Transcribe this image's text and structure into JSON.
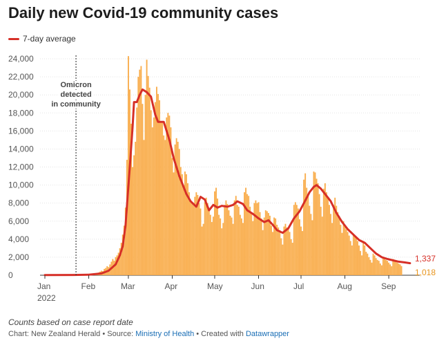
{
  "chart_data": {
    "type": "bar",
    "title": "Daily new Covid-19 community cases",
    "legend": {
      "label": "7-day average",
      "position": "top-left"
    },
    "colors": {
      "bars": "#f9ad4c",
      "line": "#d62f27",
      "last_avg": "#d62f27",
      "last_bar": "#e8951d"
    },
    "yticks": [
      0,
      2000,
      4000,
      6000,
      8000,
      10000,
      12000,
      14000,
      16000,
      18000,
      20000,
      22000,
      24000
    ],
    "ytick_labels": [
      "0",
      "2,000",
      "4,000",
      "6,000",
      "8,000",
      "10,000",
      "12,000",
      "14,000",
      "16,000",
      "18,000",
      "20,000",
      "22,000",
      "24,000"
    ],
    "ylim": [
      0,
      25000
    ],
    "xlim_days": [
      0,
      261
    ],
    "xticks": [
      {
        "day": 0,
        "label": "Jan",
        "sublabel": "2022"
      },
      {
        "day": 31,
        "label": "Feb"
      },
      {
        "day": 59,
        "label": "Mar"
      },
      {
        "day": 90,
        "label": "Apr"
      },
      {
        "day": 120,
        "label": "May"
      },
      {
        "day": 151,
        "label": "Jun"
      },
      {
        "day": 181,
        "label": "Jul"
      },
      {
        "day": 212,
        "label": "Aug"
      },
      {
        "day": 243,
        "label": "Sep"
      }
    ],
    "annotation": {
      "day": 22,
      "lines": [
        "Omicron",
        "detected",
        "in community"
      ]
    },
    "end_labels": {
      "average": "1,337",
      "daily": "1,018"
    },
    "daily_cases": [
      20,
      15,
      25,
      20,
      30,
      25,
      20,
      40,
      35,
      25,
      30,
      20,
      25,
      30,
      35,
      25,
      20,
      30,
      25,
      40,
      30,
      25,
      35,
      30,
      40,
      50,
      40,
      60,
      70,
      80,
      60,
      80,
      100,
      120,
      150,
      200,
      150,
      250,
      300,
      400,
      500,
      450,
      700,
      800,
      1000,
      900,
      1200,
      1500,
      1800,
      1600,
      2000,
      2200,
      2500,
      3000,
      3600,
      4500,
      5500,
      7500,
      12800,
      24300,
      20600,
      16800,
      12000,
      13300,
      14800,
      18600,
      22000,
      22800,
      23200,
      19000,
      15000,
      20000,
      23900,
      22100,
      20800,
      18300,
      16400,
      17500,
      19200,
      20900,
      20100,
      19400,
      17000,
      16900,
      15500,
      15000,
      17500,
      18000,
      17700,
      16400,
      13000,
      11400,
      14500,
      15200,
      14800,
      14000,
      12000,
      11200,
      10000,
      11500,
      11200,
      10200,
      9200,
      8300,
      8100,
      7800,
      8700,
      9200,
      8900,
      8000,
      7400,
      5400,
      5700,
      8100,
      8600,
      8000,
      7300,
      6700,
      5900,
      6500,
      9300,
      9700,
      8500,
      6700,
      6300,
      5200,
      5800,
      7800,
      8300,
      7900,
      7200,
      6600,
      6400,
      5700,
      8300,
      8800,
      7800,
      7600,
      6700,
      6300,
      5800,
      9200,
      9700,
      9000,
      8800,
      7600,
      6800,
      6000,
      8000,
      8300,
      8000,
      8100,
      7000,
      6300,
      5000,
      6400,
      7200,
      7100,
      6900,
      6600,
      5500,
      4800,
      6400,
      6300,
      5600,
      5300,
      5000,
      4100,
      3400,
      5400,
      5700,
      5300,
      5100,
      4800,
      4000,
      3600,
      7800,
      8100,
      7800,
      7400,
      6200,
      5400,
      4900,
      10600,
      11300,
      9700,
      8900,
      7700,
      6800,
      6100,
      11500,
      11400,
      10700,
      10200,
      9000,
      7600,
      6500,
      9600,
      10200,
      9200,
      8600,
      7800,
      6800,
      5800,
      7800,
      8600,
      7700,
      7000,
      6600,
      5600,
      4700,
      6000,
      5600,
      5100,
      4800,
      4400,
      3800,
      3300,
      4600,
      4400,
      4100,
      3800,
      3300,
      2700,
      2200,
      3800,
      3300,
      2600,
      2400,
      2000,
      1700,
      1400,
      2400,
      2200,
      1900,
      1700,
      1600,
      1300,
      1100,
      1900,
      1800,
      1700,
      1600,
      1400,
      1200,
      1000,
      1800,
      1700,
      1500,
      1400,
      1300,
      1200,
      1018
    ],
    "avg_points": [
      [
        0,
        20
      ],
      [
        20,
        30
      ],
      [
        31,
        60
      ],
      [
        40,
        200
      ],
      [
        45,
        500
      ],
      [
        50,
        1200
      ],
      [
        53,
        2200
      ],
      [
        55,
        3200
      ],
      [
        57,
        5500
      ],
      [
        60,
        12000
      ],
      [
        62,
        16500
      ],
      [
        63,
        19200
      ],
      [
        65,
        19200
      ],
      [
        67,
        20000
      ],
      [
        69,
        20600
      ],
      [
        72,
        20300
      ],
      [
        75,
        19800
      ],
      [
        78,
        17800
      ],
      [
        80,
        17000
      ],
      [
        84,
        17000
      ],
      [
        88,
        15000
      ],
      [
        91,
        13000
      ],
      [
        95,
        11000
      ],
      [
        100,
        9000
      ],
      [
        103,
        8200
      ],
      [
        107,
        7600
      ],
      [
        110,
        8700
      ],
      [
        113,
        8400
      ],
      [
        116,
        7200
      ],
      [
        119,
        7800
      ],
      [
        122,
        7500
      ],
      [
        125,
        7700
      ],
      [
        129,
        7600
      ],
      [
        133,
        7800
      ],
      [
        136,
        8200
      ],
      [
        140,
        7900
      ],
      [
        143,
        7200
      ],
      [
        147,
        6800
      ],
      [
        151,
        6300
      ],
      [
        155,
        5900
      ],
      [
        158,
        6100
      ],
      [
        161,
        5600
      ],
      [
        164,
        5000
      ],
      [
        168,
        4700
      ],
      [
        172,
        5200
      ],
      [
        176,
        6300
      ],
      [
        180,
        7100
      ],
      [
        184,
        8300
      ],
      [
        187,
        9200
      ],
      [
        190,
        9800
      ],
      [
        192,
        10000
      ],
      [
        195,
        9600
      ],
      [
        199,
        8800
      ],
      [
        202,
        8200
      ],
      [
        206,
        6900
      ],
      [
        210,
        5900
      ],
      [
        214,
        5100
      ],
      [
        218,
        4500
      ],
      [
        222,
        3900
      ],
      [
        226,
        3600
      ],
      [
        230,
        3000
      ],
      [
        234,
        2400
      ],
      [
        238,
        2000
      ],
      [
        242,
        1800
      ],
      [
        246,
        1650
      ],
      [
        250,
        1500
      ],
      [
        254,
        1430
      ],
      [
        258,
        1337
      ]
    ]
  },
  "footer": {
    "note": "Counts based on case report date",
    "prefix": "Chart: New Zealand Herald • Source: ",
    "source": "Ministry of Health",
    "sep": " • Created with ",
    "tool": "Datawrapper"
  }
}
